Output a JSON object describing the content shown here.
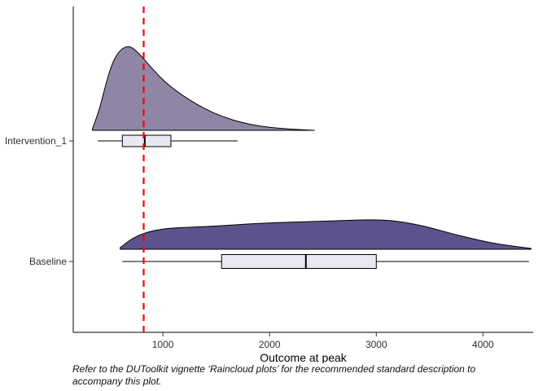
{
  "chart_data": {
    "type": "area",
    "variant": "raincloud (half-eye density ridge + boxplot)",
    "title": "",
    "xlabel": "Outcome at peak",
    "ylabel": "",
    "xlim": [
      160,
      4470
    ],
    "x_tick_labels": [
      "1000",
      "2000",
      "3000",
      "4000"
    ],
    "x_tick_values": [
      1000,
      2000,
      3000,
      4000
    ],
    "grid": "off",
    "legend": "none",
    "axis_color": "#000000",
    "tick_label_color": "#303030",
    "box_fill": "#e9e7f1",
    "reference_line": {
      "x": 820,
      "color": "#ff0000",
      "style": "dashed"
    },
    "groups": [
      {
        "label": "Intervention_1",
        "fill": "#8f86a6",
        "outline": "#000000",
        "density": {
          "x": [
            340,
            400,
            450,
            500,
            550,
            610,
            680,
            750,
            830,
            920,
            1020,
            1130,
            1260,
            1400,
            1560,
            1740,
            1950,
            2180,
            2420
          ],
          "height": [
            0.02,
            0.22,
            0.47,
            0.7,
            0.86,
            0.96,
            1.0,
            0.94,
            0.83,
            0.7,
            0.57,
            0.46,
            0.35,
            0.25,
            0.16,
            0.09,
            0.04,
            0.015,
            0.0
          ]
        },
        "box": {
          "whisker_low": 390,
          "q1": 620,
          "median": 830,
          "q3": 1075,
          "whisker_high": 1700
        }
      },
      {
        "label": "Baseline",
        "fill": "#5c538c",
        "outline": "#000000",
        "density": {
          "x": [
            600,
            680,
            760,
            850,
            950,
            1080,
            1250,
            1450,
            1700,
            1950,
            2200,
            2450,
            2700,
            2950,
            3150,
            3350,
            3550,
            3750,
            3950,
            4150,
            4320,
            4450
          ],
          "height": [
            0.02,
            0.1,
            0.16,
            0.2,
            0.23,
            0.25,
            0.26,
            0.27,
            0.29,
            0.31,
            0.32,
            0.33,
            0.34,
            0.35,
            0.34,
            0.3,
            0.24,
            0.17,
            0.11,
            0.06,
            0.03,
            0.01
          ]
        },
        "box": {
          "whisker_low": 620,
          "q1": 1550,
          "median": 2340,
          "q3": 3000,
          "whisker_high": 4430
        }
      }
    ],
    "caption": "Refer to the DUToolkit vignette ‘Raincloud plots’ for the recommended standard description to accompany this plot."
  }
}
